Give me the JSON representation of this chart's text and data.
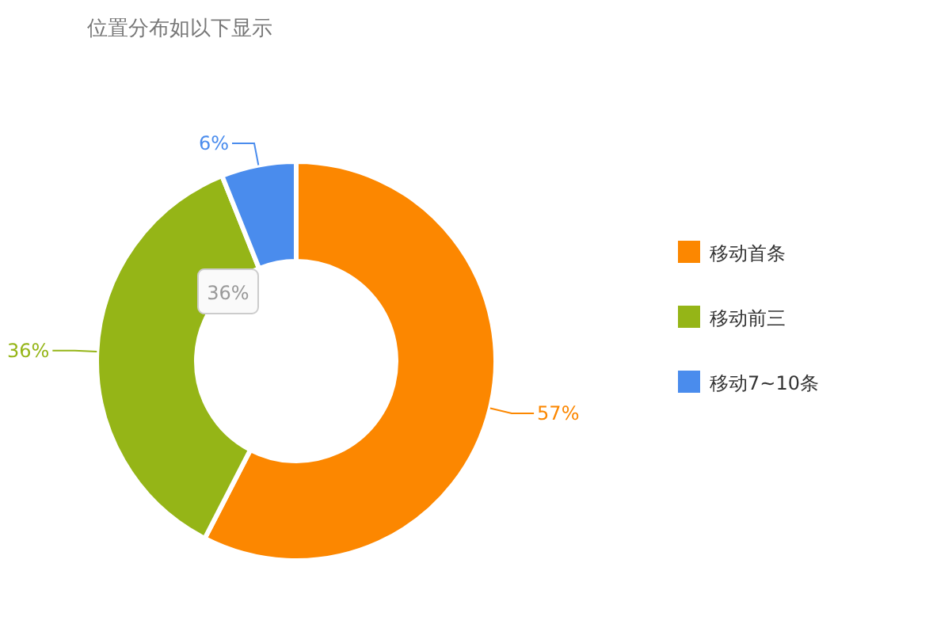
{
  "chart_data": {
    "type": "donut",
    "title": "位置分布如以下显示",
    "categories": [
      "移动首条",
      "移动前三",
      "移动7~10条"
    ],
    "values": [
      57,
      36,
      6
    ],
    "colors": [
      "#fc8700",
      "#95b517",
      "#4a8ced"
    ],
    "value_labels": [
      "57%",
      "36%",
      "6%"
    ],
    "annotations": [
      "36%"
    ],
    "legend": "right"
  }
}
